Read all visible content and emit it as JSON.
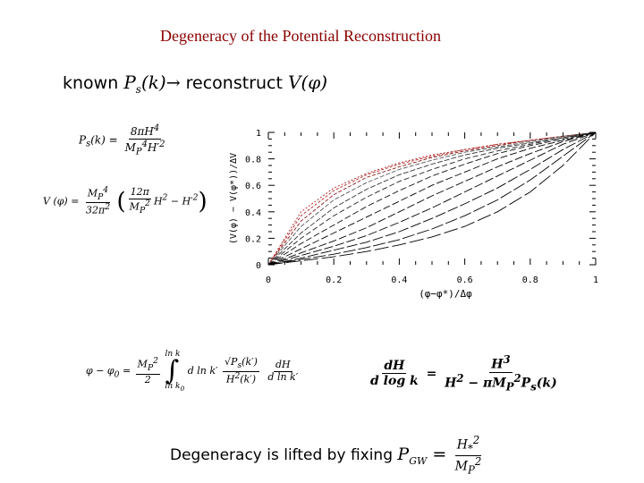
{
  "title": "Degeneracy of the Potential Reconstruction",
  "known_line": {
    "w1": "known",
    "m1": "P",
    "m1sub": "s",
    "m1arg": "(k)",
    "arrow": "→",
    "w2": "reconstruct",
    "m2": "V(φ)"
  },
  "eq_ps": {
    "lhs": "P",
    "lhs_sub": "s",
    "lhs_arg": "(k) =",
    "num": "8πH",
    "num_sup": "4",
    "den": "M",
    "den_sub": "P",
    "den_sup": "4",
    "den2": "H′",
    "den2_sup": "2"
  },
  "eq_v": {
    "lhs": "V (φ) =",
    "num": "M",
    "num_sub": "P",
    "num_sup": "4",
    "den": "32π",
    "den_sup": "2",
    "inner_num": "12π",
    "inner_den": "M",
    "inner_den_sub": "P",
    "inner_den_sup": "2",
    "tail": "H",
    "tail_sup": "2",
    "tail2": "− H′",
    "tail2_sup": "2"
  },
  "eq_phi": {
    "lhs": "φ − φ",
    "lhs_sub": "0",
    "eq": "=",
    "num": "M",
    "num_sub": "P",
    "num_sup": "2",
    "den": "2",
    "int_up": "ln k",
    "int_lo": "ln k",
    "int_lo_sub": "0",
    "dlnk": "d ln k′",
    "fnum": "√P",
    "fnum_sub": "s",
    "fnum_arg": "(k′)",
    "fden": "H",
    "fden_sup": "2",
    "fden_arg": "(k′)",
    "dnum": "dH",
    "dden": "d ln k′"
  },
  "eq_dh": {
    "num": "dH",
    "den": "d log k",
    "eq": "=",
    "rnum": "H",
    "rnum_sup": "3",
    "rden": "H",
    "rden_sup": "2",
    "rden2": "− πM",
    "rden2_sub": "P",
    "rden2_sup": "2",
    "rden3": "P",
    "rden3_sub": "s",
    "rden3_arg": "(k)"
  },
  "degeneracy": {
    "text": "Degeneracy is lifted by fixing",
    "m": "P",
    "m_sub": "GW",
    "eq": "=",
    "num": "H",
    "num_sub": "*",
    "num_sup": "2",
    "den": "M",
    "den_sub": "P",
    "den_sup": "2"
  },
  "chart_data": {
    "type": "line",
    "xlabel": "(φ−φ*)/Δφ",
    "ylabel": "(V(φ) − V(φ*))/ΔV",
    "xlim": [
      0,
      1
    ],
    "ylim": [
      0,
      1
    ],
    "x_ticks": [
      "0",
      "0.2",
      "0.4",
      "0.6",
      "0.8",
      "1"
    ],
    "y_ticks": [
      "0",
      "0.2",
      "0.4",
      "0.6",
      "0.8",
      "1"
    ],
    "grid": false,
    "x": [
      0,
      0.1,
      0.2,
      0.3,
      0.4,
      0.5,
      0.6,
      0.7,
      0.8,
      0.9,
      1
    ],
    "series": [
      {
        "values": [
          0,
          0.4,
          0.58,
          0.69,
          0.77,
          0.83,
          0.87,
          0.91,
          0.94,
          0.97,
          1.0
        ]
      },
      {
        "values": [
          0,
          0.37,
          0.56,
          0.68,
          0.76,
          0.82,
          0.87,
          0.91,
          0.94,
          0.97,
          1.0
        ]
      },
      {
        "values": [
          0,
          0.33,
          0.53,
          0.66,
          0.74,
          0.81,
          0.86,
          0.9,
          0.94,
          0.97,
          1.0
        ]
      },
      {
        "values": [
          0,
          0.29,
          0.49,
          0.62,
          0.72,
          0.79,
          0.85,
          0.89,
          0.93,
          0.97,
          1.0
        ]
      },
      {
        "values": [
          0,
          0.24,
          0.43,
          0.57,
          0.68,
          0.76,
          0.83,
          0.88,
          0.92,
          0.96,
          1.0
        ]
      },
      {
        "values": [
          0,
          0.2,
          0.37,
          0.51,
          0.63,
          0.72,
          0.8,
          0.86,
          0.91,
          0.96,
          1.0
        ]
      },
      {
        "values": [
          0,
          0.16,
          0.3,
          0.44,
          0.56,
          0.67,
          0.76,
          0.84,
          0.9,
          0.95,
          1.0
        ]
      },
      {
        "values": [
          0,
          0.12,
          0.24,
          0.36,
          0.48,
          0.6,
          0.7,
          0.8,
          0.88,
          0.94,
          1.0
        ]
      },
      {
        "values": [
          0,
          0.09,
          0.18,
          0.28,
          0.4,
          0.52,
          0.63,
          0.74,
          0.84,
          0.93,
          1.0
        ]
      },
      {
        "values": [
          0,
          0.07,
          0.14,
          0.22,
          0.32,
          0.43,
          0.55,
          0.67,
          0.79,
          0.91,
          1.0
        ]
      },
      {
        "values": [
          0,
          0.05,
          0.11,
          0.17,
          0.25,
          0.35,
          0.46,
          0.58,
          0.72,
          0.87,
          1.0
        ]
      },
      {
        "values": [
          0,
          0.04,
          0.08,
          0.13,
          0.19,
          0.27,
          0.37,
          0.49,
          0.64,
          0.82,
          1.0
        ]
      },
      {
        "values": [
          0,
          0.03,
          0.06,
          0.1,
          0.15,
          0.21,
          0.29,
          0.4,
          0.55,
          0.75,
          1.0
        ]
      }
    ]
  }
}
